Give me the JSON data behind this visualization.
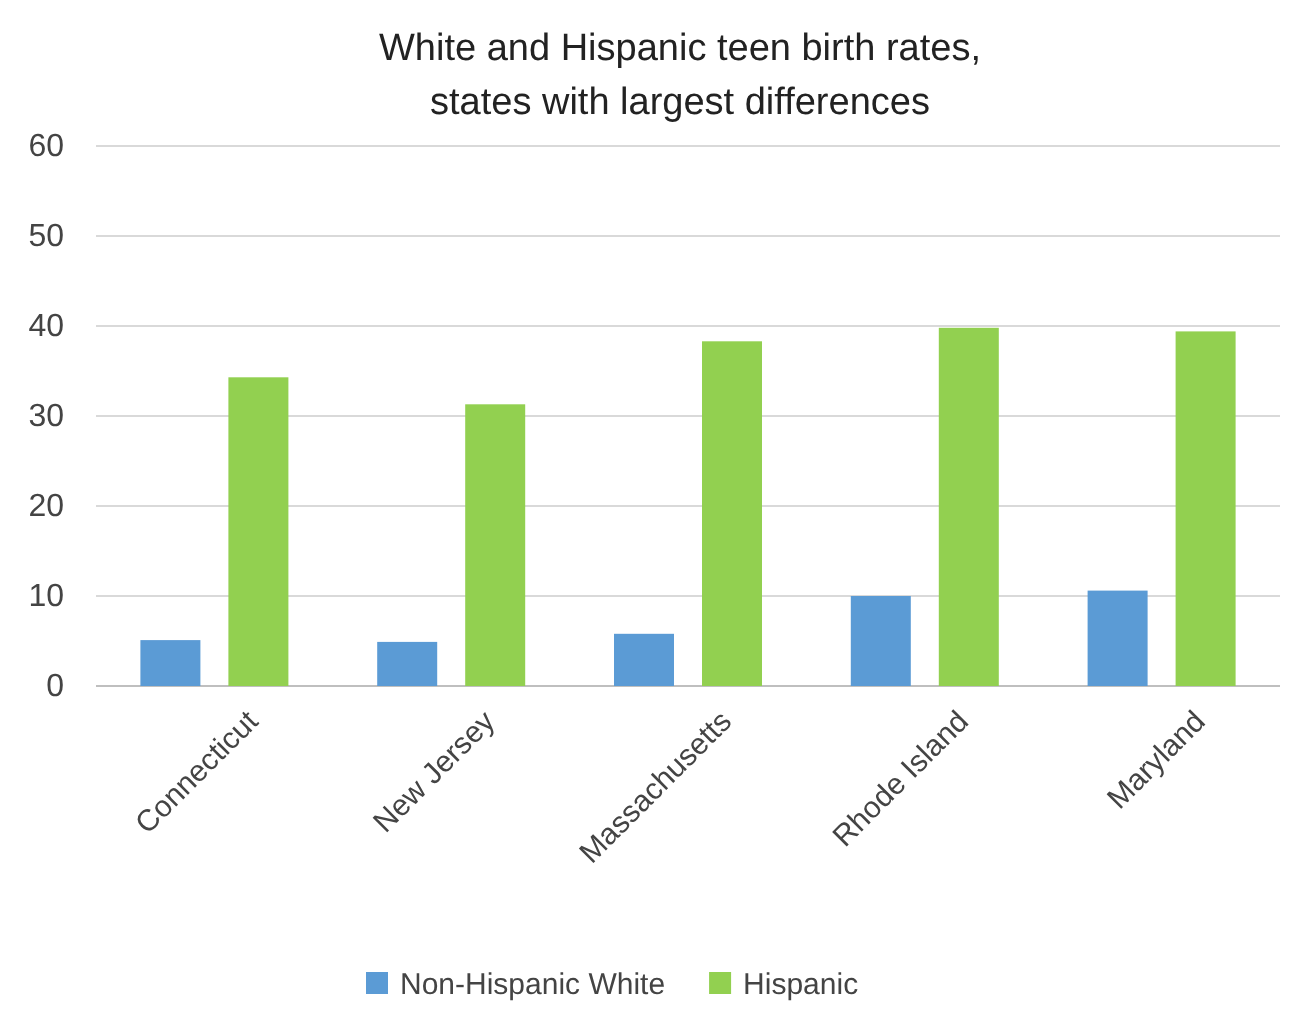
{
  "chart_data": {
    "type": "bar",
    "title": "White and Hispanic teen birth rates,\nstates with largest differences",
    "categories": [
      "Connecticut",
      "New Jersey",
      "Massachusetts",
      "Rhode Island",
      "Maryland"
    ],
    "series": [
      {
        "name": "Non-Hispanic White",
        "color": "#5b9bd5",
        "values": [
          5.1,
          4.9,
          5.8,
          10,
          10.6
        ]
      },
      {
        "name": "Hispanic",
        "color": "#92d050",
        "values": [
          34.3,
          31.3,
          38.3,
          39.8,
          39.4
        ]
      }
    ],
    "ylim": [
      0,
      60
    ],
    "yticks": [
      0,
      10,
      20,
      30,
      40,
      50,
      60
    ],
    "grid": "y",
    "legend": "bottom"
  }
}
